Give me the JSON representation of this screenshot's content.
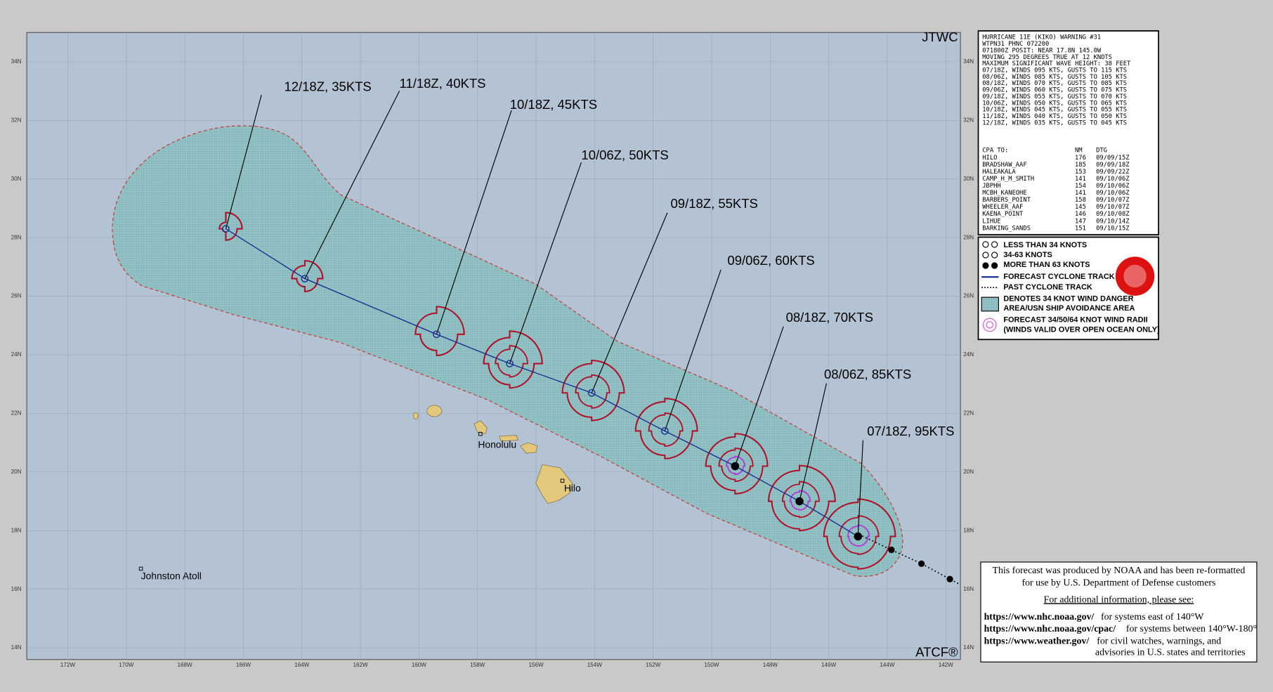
{
  "header": {
    "agency": "JTWC",
    "system": "ATCF®"
  },
  "map": {
    "xlim": [
      173.4,
      141.5
    ],
    "ylim": [
      13.6,
      35.0
    ],
    "lon_ticks": [
      {
        "value": 172,
        "label": "172W"
      },
      {
        "value": 170,
        "label": "170W"
      },
      {
        "value": 168,
        "label": "168W"
      },
      {
        "value": 166,
        "label": "166W"
      },
      {
        "value": 164,
        "label": "164W"
      },
      {
        "value": 162,
        "label": "162W"
      },
      {
        "value": 160,
        "label": "160W"
      },
      {
        "value": 158,
        "label": "158W"
      },
      {
        "value": 156,
        "label": "156W"
      },
      {
        "value": 154,
        "label": "154W"
      },
      {
        "value": 152,
        "label": "152W"
      },
      {
        "value": 150,
        "label": "150W"
      },
      {
        "value": 148,
        "label": "148W"
      },
      {
        "value": 146,
        "label": "146W"
      },
      {
        "value": 144,
        "label": "144W"
      },
      {
        "value": 142,
        "label": "142W"
      }
    ],
    "lat_ticks": [
      {
        "value": 14,
        "label": "14N"
      },
      {
        "value": 16,
        "label": "16N"
      },
      {
        "value": 18,
        "label": "18N"
      },
      {
        "value": 20,
        "label": "20N"
      },
      {
        "value": 22,
        "label": "22N"
      },
      {
        "value": 24,
        "label": "24N"
      },
      {
        "value": 26,
        "label": "26N"
      },
      {
        "value": 28,
        "label": "28N"
      },
      {
        "value": 30,
        "label": "30N"
      },
      {
        "value": 32,
        "label": "32N"
      },
      {
        "value": 34,
        "label": "34N"
      }
    ],
    "forecast": [
      {
        "label": "07/18Z, 95KTS",
        "lon": 145.0,
        "lat": 17.8
      },
      {
        "label": "08/06Z, 85KTS",
        "lon": 147.0,
        "lat": 19.0
      },
      {
        "label": "08/18Z, 70KTS",
        "lon": 149.2,
        "lat": 20.2
      },
      {
        "label": "09/06Z, 60KTS",
        "lon": 151.6,
        "lat": 21.4
      },
      {
        "label": "09/18Z, 55KTS",
        "lon": 154.1,
        "lat": 22.7
      },
      {
        "label": "10/06Z, 50KTS",
        "lon": 156.9,
        "lat": 23.7
      },
      {
        "label": "10/18Z, 45KTS",
        "lon": 159.4,
        "lat": 24.7
      },
      {
        "label": "11/18Z, 40KTS",
        "lon": 163.9,
        "lat": 26.6
      },
      {
        "label": "12/18Z, 35KTS",
        "lon": 166.6,
        "lat": 28.3
      }
    ],
    "places": [
      {
        "name": "Honolulu",
        "lon": 157.9,
        "lat": 21.3
      },
      {
        "name": "Hilo",
        "lon": 155.1,
        "lat": 19.7
      },
      {
        "name": "Johnston Atoll",
        "lon": 169.5,
        "lat": 16.7
      }
    ]
  },
  "warning": {
    "lines": [
      "HURRICANE 11E (KIKO) WARNING #31",
      "WTPN31 PHNC 072200",
      "071800Z POSIT: NEAR 17.8N 145.0W",
      "MOVING 295 DEGREES TRUE AT 12 KNOTS",
      "MAXIMUM SIGNIFICANT WAVE HEIGHT: 38 FEET",
      "07/18Z, WINDS 095 KTS, GUSTS TO 115 KTS",
      "08/06Z, WINDS 085 KTS, GUSTS TO 105 KTS",
      "08/18Z, WINDS 070 KTS, GUSTS TO 085 KTS",
      "09/06Z, WINDS 060 KTS, GUSTS TO 075 KTS",
      "09/18Z, WINDS 055 KTS, GUSTS TO 070 KTS",
      "10/06Z, WINDS 050 KTS, GUSTS TO 065 KTS",
      "10/18Z, WINDS 045 KTS, GUSTS TO 055 KTS",
      "11/18Z, WINDS 040 KTS, GUSTS TO 050 KTS",
      "12/18Z, WINDS 035 KTS, GUSTS TO 045 KTS"
    ]
  },
  "cpa": {
    "header": [
      "CPA TO:",
      "NM",
      "DTG"
    ],
    "rows": [
      [
        "HILO",
        "176",
        "09/09/15Z"
      ],
      [
        "BRADSHAW_AAF",
        "185",
        "09/09/18Z"
      ],
      [
        "HALEAKALA",
        "153",
        "09/09/22Z"
      ],
      [
        "CAMP_H_M_SMITH",
        "141",
        "09/10/06Z"
      ],
      [
        "JBPHH",
        "154",
        "09/10/06Z"
      ],
      [
        "MCBH_KANEOHE",
        "141",
        "09/10/06Z"
      ],
      [
        "BARBERS_POINT",
        "158",
        "09/10/07Z"
      ],
      [
        "WHEELER_AAF",
        "145",
        "09/10/07Z"
      ],
      [
        "KAENA_POINT",
        "146",
        "09/10/08Z"
      ],
      [
        "LIHUE",
        "147",
        "09/10/14Z"
      ],
      [
        "BARKING_SANDS",
        "151",
        "09/10/15Z"
      ]
    ]
  },
  "legend": [
    "LESS THAN 34 KNOTS",
    "34-63 KNOTS",
    "MORE THAN 63 KNOTS",
    "FORECAST CYCLONE TRACK",
    "PAST CYCLONE TRACK",
    "DENOTES 34 KNOT WIND DANGER",
    "AREA/USN SHIP AVOIDANCE AREA",
    "FORECAST 34/50/64 KNOT WIND RADII",
    "(WINDS VALID OVER OPEN OCEAN ONLY)"
  ],
  "note": {
    "intro": [
      "This forecast was produced by NOAA and has been re-formatted",
      "for use by U.S. Department of Defense customers"
    ],
    "more": "For additional information, please see:",
    "links": [
      {
        "url": "https://www.nhc.noaa.gov/",
        "text": "for systems east of 140°W"
      },
      {
        "url": "https://www.nhc.noaa.gov/cpac/",
        "text": "for systems between 140°W-180°"
      },
      {
        "url": "https://www.weather.gov/",
        "text": "for civil watches, warnings, and"
      }
    ],
    "tail": "advisories in U.S. states and territories"
  }
}
